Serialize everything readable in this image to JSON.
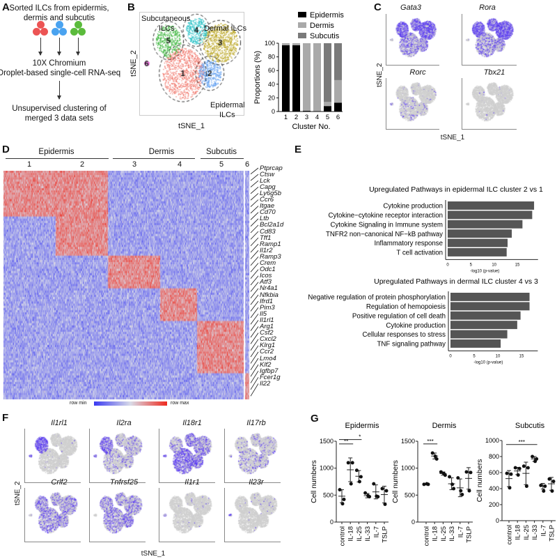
{
  "panelA": {
    "label": "A",
    "title_line1": "Sorted ILCs from epidermis,",
    "title_line2": "dermis and subcutis",
    "dot_colors": [
      "#ec5454",
      "#4aa3f0",
      "#5bbb3c"
    ],
    "step2_line1": "10X Chromium",
    "step2_line2": "Droplet-based single-cell RNA-seq",
    "step3_line1": "Unsupervised clustering of",
    "step3_line2": "merged 3 data sets"
  },
  "panelB": {
    "label": "B",
    "tsne": {
      "xlabel": "tSNE_1",
      "ylabel": "tSNE_2",
      "group_labels": [
        "Subcutaneous",
        "ILCs",
        "Dermal ILCs",
        "Epidermal",
        "ILCs"
      ],
      "clusters": [
        {
          "id": "1",
          "color": "#f0766b"
        },
        {
          "id": "2",
          "color": "#5f9ef0"
        },
        {
          "id": "3",
          "color": "#b9a420"
        },
        {
          "id": "4",
          "color": "#22bfc4"
        },
        {
          "id": "5",
          "color": "#35b336"
        },
        {
          "id": "6",
          "color": "#e85ad8"
        }
      ]
    }
  },
  "panelC": {
    "label": "C",
    "genes": [
      "Gata3",
      "Rora",
      "Rorc",
      "Tbx21"
    ],
    "xlabel": "tSNE_1",
    "ylabel": "tSNE_2"
  },
  "panelD": {
    "label": "D",
    "groups": [
      "Epidermis",
      "Dermis",
      "Subcutis"
    ],
    "cluster_numbers": [
      "1",
      "2",
      "3",
      "4",
      "5",
      "6"
    ],
    "genes": [
      "Ptprcap",
      "Ctsw",
      "Lck",
      "Capg",
      "Ly6g5b",
      "Ccr6",
      "Itgae",
      "Cd70",
      "Ltb",
      "Bcl2a1d",
      "Cd83",
      "Tff1",
      "Ramp1",
      "Il1r2",
      "Ramp3",
      "Crem",
      "Odc1",
      "Icos",
      "Atf3",
      "Nr4a1",
      "Nfkbia",
      "Ifrd1",
      "Pim3",
      "Il5",
      "Il1rl1",
      "Arg1",
      "Csf2",
      "Cxcl2",
      "Klrg1",
      "Ccr2",
      "Lmo4",
      "Klf2",
      "Igfbp7",
      "Fcer1g",
      "Il22"
    ],
    "legend_min": "row min",
    "legend_max": "row max",
    "colors": {
      "min": "#3a3af2",
      "mid": "#d9dbe8",
      "max": "#ee2a1e"
    }
  },
  "panelE": {
    "label": "E"
  },
  "panelF": {
    "label": "F",
    "genes": [
      "Il1rl1",
      "Il2ra",
      "Il18r1",
      "Il17rb",
      "Crlf2",
      "Tnfrsf25",
      "Il1r1",
      "Il23r"
    ],
    "xlabel": "tSNE_1",
    "ylabel": "tSNE_2"
  },
  "panelG": {
    "label": "G"
  },
  "chart_data": [
    {
      "id": "B-proportions",
      "type": "bar",
      "stacked": true,
      "categories": [
        "1",
        "2",
        "3",
        "4",
        "5",
        "6"
      ],
      "series": [
        {
          "name": "Epidermis",
          "color": "#000000",
          "values": [
            97,
            97,
            1,
            0.5,
            8,
            13
          ]
        },
        {
          "name": "Dermis",
          "color": "#a9a9a9",
          "values": [
            3,
            3,
            99,
            99.5,
            6,
            33
          ]
        },
        {
          "name": "Subcutis",
          "color": "#7a7a7a",
          "values": [
            0,
            0,
            0,
            0,
            86,
            54
          ]
        }
      ],
      "xlabel": "Cluster No.",
      "ylabel": "Proportions (%)",
      "ylim": [
        0,
        100
      ],
      "yticks": [
        0,
        20,
        40,
        60,
        80,
        100
      ],
      "legend": "top"
    },
    {
      "id": "E-epidermal",
      "type": "bar",
      "orientation": "horizontal",
      "title": "Upregulated Pathways in epidermal ILC cluster 2 vs 1",
      "categories": [
        "Cytokine production",
        "Cytokine−cytokine receptor interaction",
        "Cytokine Signaling in Immune system",
        "TNFR2 non−canonical NF−kB pathway",
        "Inflammatory response",
        "T cell activation"
      ],
      "values": [
        18.6,
        18.2,
        16.1,
        13.8,
        12.9,
        12.7
      ],
      "xlabel": "-log10 (p-value)",
      "xticks": [
        0,
        5,
        10,
        15
      ],
      "xlim": [
        0,
        19
      ]
    },
    {
      "id": "E-dermal",
      "type": "bar",
      "orientation": "horizontal",
      "title": "Upregulated Pathways in dermal ILC cluster 4 vs 3",
      "categories": [
        "Negative regulation of protein phosphorylation",
        "Regulation of hemopoiesis",
        "Positive regulation of cell death",
        "Cytokine production",
        "Cellular responses to stress",
        "TNF signaling pathway"
      ],
      "values": [
        16.7,
        16.7,
        14.8,
        14.1,
        12.0,
        10.6
      ],
      "xlabel": "-log10 (p-value)",
      "xticks": [
        0,
        5,
        10,
        15
      ],
      "xlim": [
        0,
        18
      ]
    },
    {
      "id": "G-epidermis",
      "type": "scatter",
      "title": "Epidermis",
      "ylabel": "Cell numbers",
      "categories": [
        "control",
        "IL-18",
        "IL-25",
        "IL-33",
        "IL-7",
        "TSLP"
      ],
      "points": [
        [
          600,
          420,
          340
        ],
        [
          1100,
          1100,
          710
        ],
        [
          960,
          840,
          750
        ],
        [
          540,
          470,
          490
        ],
        [
          710,
          470,
          480
        ],
        [
          620,
          580,
          330
        ]
      ],
      "mean": [
        480,
        970,
        850,
        490,
        560,
        510
      ],
      "sd": [
        120,
        220,
        105,
        40,
        130,
        155
      ],
      "ylim": [
        0,
        1500
      ],
      "yticks": [
        0,
        500,
        1000,
        1500
      ],
      "significance": [
        {
          "from": "control",
          "to": "IL-18",
          "label": "**",
          "y": 1450
        },
        {
          "from": "control",
          "to": "IL-25",
          "label": "*",
          "y": 1530
        }
      ]
    },
    {
      "id": "G-dermis",
      "type": "scatter",
      "title": "Dermis",
      "ylabel": "Cell numbers",
      "categories": [
        "control",
        "IL-18",
        "IL-25",
        "IL-33",
        "IL-7",
        "TSLP"
      ],
      "points": [
        [
          700,
          700,
          710
        ],
        [
          1280,
          1170,
          1220
        ],
        [
          930,
          870,
          900
        ],
        [
          840,
          620,
          700
        ],
        [
          820,
          510,
          580
        ],
        [
          930,
          920,
          580
        ]
      ],
      "mean": [
        700,
        1225,
        900,
        710,
        635,
        810
      ],
      "sd": [
        10,
        55,
        30,
        110,
        165,
        200
      ],
      "ylim": [
        0,
        1500
      ],
      "yticks": [
        0,
        500,
        1000,
        1500
      ],
      "significance": [
        {
          "from": "control",
          "to": "IL-18",
          "label": "***",
          "y": 1450
        }
      ]
    },
    {
      "id": "G-subcutis",
      "type": "scatter",
      "title": "Subcutis",
      "ylabel": "Cell numbers",
      "categories": [
        "control",
        "IL-18",
        "IL-25",
        "IL-33",
        "IL-7",
        "TSLP"
      ],
      "points": [
        [
          590,
          580,
          410
        ],
        [
          660,
          650,
          570
        ],
        [
          680,
          660,
          430
        ],
        [
          800,
          770,
          740
        ],
        [
          440,
          430,
          370
        ],
        [
          520,
          490,
          370
        ]
      ],
      "mean": [
        525,
        620,
        590,
        770,
        430,
        460
      ],
      "sd": [
        100,
        45,
        140,
        30,
        35,
        80
      ],
      "ylim": [
        0,
        1000
      ],
      "yticks": [
        0,
        200,
        400,
        600,
        800,
        1000
      ],
      "significance": [
        {
          "from": "control",
          "to": "IL-33",
          "label": "***",
          "y": 950
        }
      ]
    }
  ]
}
